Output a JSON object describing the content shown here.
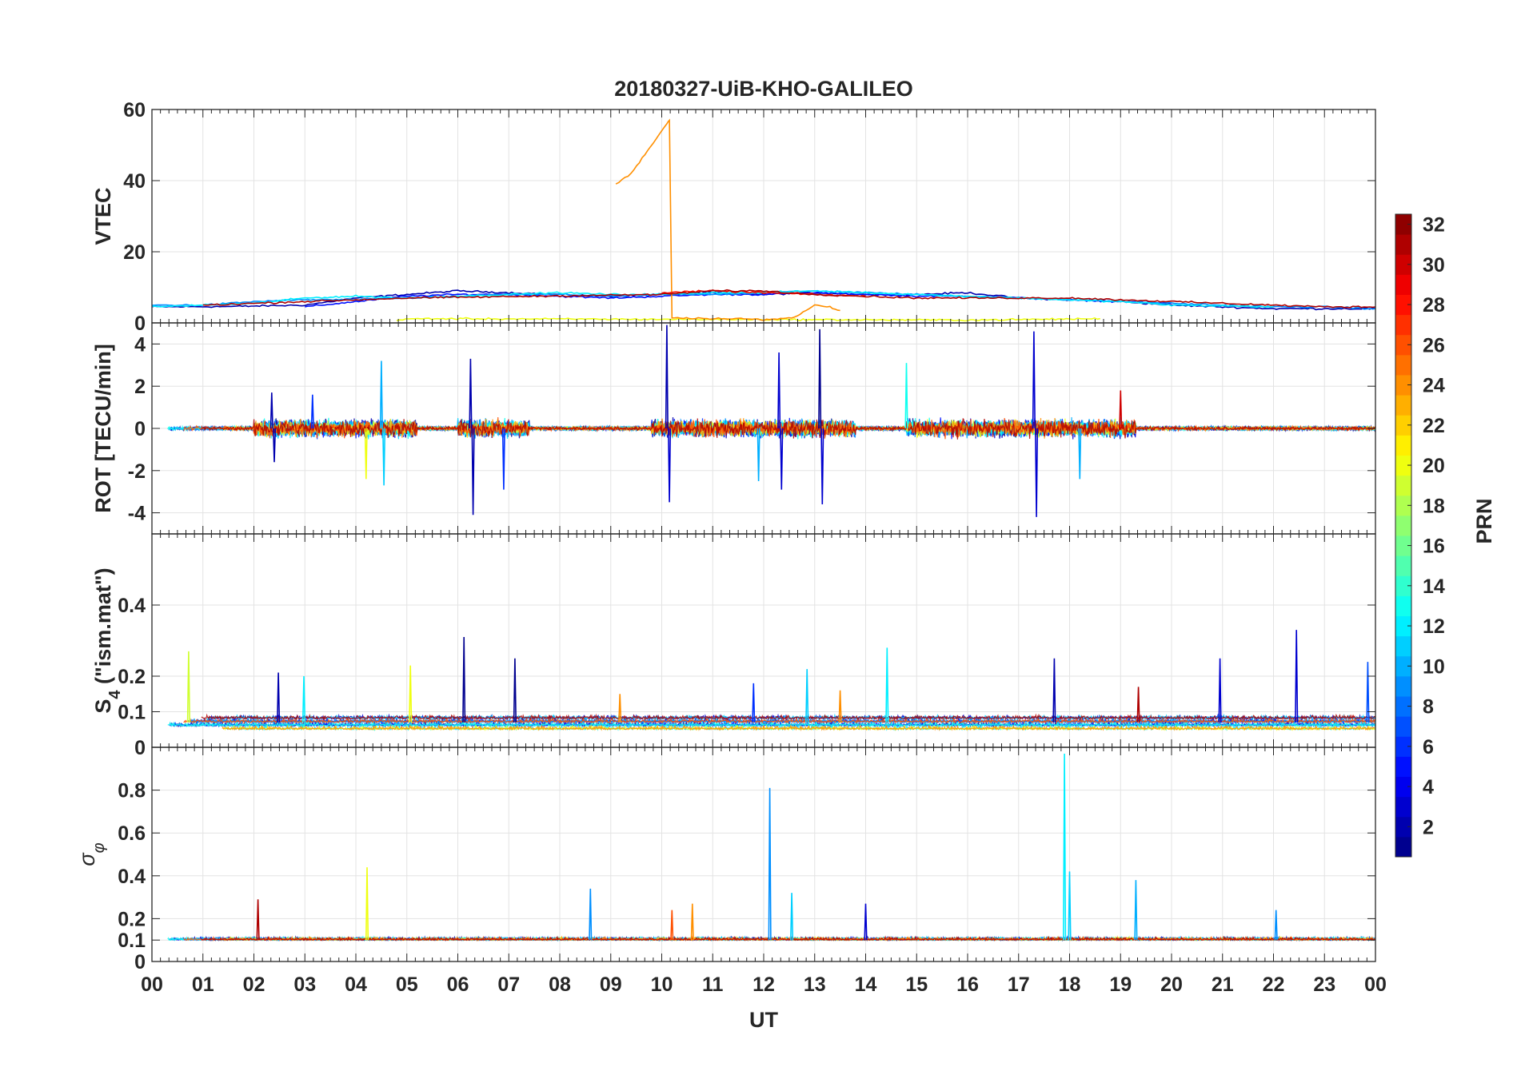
{
  "chart_data": {
    "type": "line",
    "title": "20180327-UiB-KHO-GALILEO",
    "xlabel": "UT",
    "x_ticks": [
      "00",
      "01",
      "02",
      "03",
      "04",
      "05",
      "06",
      "07",
      "08",
      "09",
      "10",
      "11",
      "12",
      "13",
      "14",
      "15",
      "16",
      "17",
      "18",
      "19",
      "20",
      "21",
      "22",
      "23",
      "00"
    ],
    "x_range_hours": [
      0,
      24
    ],
    "grid": true,
    "colorbar": {
      "label": "PRN",
      "range": [
        1,
        32
      ],
      "ticks": [
        "2",
        "4",
        "6",
        "8",
        "10",
        "12",
        "14",
        "16",
        "18",
        "20",
        "22",
        "24",
        "26",
        "28",
        "30",
        "32"
      ],
      "colormap": "jet",
      "placement": "right"
    },
    "panels": [
      {
        "name": "vtec",
        "ylabel": "VTEC",
        "ylim": [
          0,
          60
        ],
        "yticks": [
          "0",
          "20",
          "40",
          "60"
        ],
        "series": [
          {
            "prn": 2,
            "points": [
              [
                0,
                4.5
              ],
              [
                1.5,
                4.6
              ],
              [
                3,
                5
              ],
              [
                4,
                7
              ],
              [
                5,
                8
              ],
              [
                6,
                9
              ],
              [
                7,
                8.5
              ],
              [
                8,
                8
              ],
              [
                9,
                7.5
              ],
              [
                10,
                8
              ],
              [
                11,
                8.5
              ],
              [
                12,
                8
              ],
              [
                13,
                8.5
              ],
              [
                14,
                8
              ],
              [
                15,
                8
              ],
              [
                16,
                8.5
              ],
              [
                17,
                7
              ],
              [
                18,
                6.5
              ],
              [
                19,
                6
              ],
              [
                20,
                5
              ],
              [
                21,
                4.5
              ],
              [
                22,
                4
              ],
              [
                23,
                4
              ],
              [
                24,
                4
              ]
            ]
          },
          {
            "prn": 5,
            "points": [
              [
                3,
                4.5
              ],
              [
                4,
                6
              ],
              [
                5,
                7.5
              ],
              [
                6,
                8
              ],
              [
                7,
                8
              ],
              [
                8,
                7.5
              ],
              [
                9,
                7
              ],
              [
                10,
                7.5
              ],
              [
                11,
                8
              ],
              [
                12,
                8
              ],
              [
                13,
                8.5
              ],
              [
                14,
                8
              ],
              [
                15,
                7.5
              ],
              [
                16,
                7.5
              ],
              [
                17,
                7
              ],
              [
                18,
                6.5
              ],
              [
                19,
                6
              ],
              [
                20,
                5.5
              ]
            ]
          },
          {
            "prn": 9,
            "points": [
              [
                0,
                5
              ],
              [
                1,
                5
              ],
              [
                2,
                6
              ],
              [
                3,
                6.5
              ],
              [
                4,
                6.5
              ],
              [
                5,
                7
              ],
              [
                6,
                7.5
              ],
              [
                7,
                8
              ],
              [
                8,
                8
              ],
              [
                9,
                7.5
              ],
              [
                10,
                8
              ],
              [
                11,
                8
              ],
              [
                12,
                8.5
              ],
              [
                13,
                9
              ],
              [
                14,
                8.5
              ],
              [
                15,
                8
              ],
              [
                16,
                7.5
              ],
              [
                17,
                7
              ],
              [
                18,
                6.5
              ],
              [
                19,
                6
              ],
              [
                20,
                5.5
              ],
              [
                21,
                5
              ],
              [
                22,
                4.5
              ],
              [
                23,
                4.5
              ],
              [
                24,
                4
              ]
            ]
          },
          {
            "prn": 12,
            "points": [
              [
                0,
                4.5
              ],
              [
                1,
                5
              ],
              [
                2,
                5.5
              ],
              [
                3,
                7
              ],
              [
                4,
                7.5
              ],
              [
                5,
                7
              ],
              [
                6,
                7.5
              ],
              [
                7,
                8
              ],
              [
                8,
                8.5
              ],
              [
                9,
                8
              ],
              [
                10,
                8
              ],
              [
                11,
                8.5
              ],
              [
                12,
                8.5
              ],
              [
                13,
                9
              ],
              [
                14,
                8.5
              ],
              [
                15,
                8
              ],
              [
                16,
                7.5
              ],
              [
                17,
                7
              ],
              [
                18,
                6.5
              ],
              [
                19,
                6
              ],
              [
                20,
                5
              ],
              [
                21,
                4.8
              ],
              [
                22,
                4.5
              ]
            ]
          },
          {
            "prn": 20,
            "points": [
              [
                4.8,
                0.6
              ],
              [
                5.1,
                1.2
              ],
              [
                16,
                0.8
              ],
              [
                18.6,
                1.2
              ]
            ]
          },
          {
            "prn": 24,
            "points": [
              [
                9.1,
                39
              ],
              [
                9.4,
                42
              ],
              [
                10.1,
                56
              ],
              [
                10.15,
                57
              ],
              [
                10.2,
                1.5
              ],
              [
                11,
                1.2
              ],
              [
                11.5,
                1.3
              ],
              [
                12,
                0.8
              ],
              [
                12.6,
                1.5
              ],
              [
                13,
                5
              ],
              [
                13.3,
                4.5
              ],
              [
                13.5,
                3.5
              ]
            ]
          },
          {
            "prn": 28,
            "points": [
              [
                10,
                8.5
              ],
              [
                11,
                9
              ],
              [
                12,
                8.5
              ],
              [
                13,
                8
              ],
              [
                14,
                7.5
              ]
            ]
          },
          {
            "prn": 31,
            "points": [
              [
                1,
                5
              ],
              [
                2,
                5.5
              ],
              [
                3,
                6
              ],
              [
                4,
                6.5
              ],
              [
                5,
                7
              ],
              [
                10,
                8
              ],
              [
                11,
                9
              ],
              [
                12,
                9
              ],
              [
                13,
                8
              ],
              [
                15,
                7
              ],
              [
                16,
                7
              ],
              [
                17,
                7
              ],
              [
                18,
                7
              ],
              [
                19,
                6.5
              ],
              [
                23,
                4.5
              ],
              [
                24,
                4.5
              ]
            ]
          }
        ]
      },
      {
        "name": "rot",
        "ylabel": "ROT [TECU/min]",
        "ylim": [
          -5,
          5
        ],
        "yticks": [
          "-4",
          "-2",
          "0",
          "2",
          "4"
        ],
        "spikes": [
          {
            "prn": 2,
            "x": 2.35,
            "y": 1.7
          },
          {
            "prn": 2,
            "x": 2.4,
            "y": -1.6
          },
          {
            "prn": 6,
            "x": 3.15,
            "y": 1.6
          },
          {
            "prn": 10,
            "x": 4.5,
            "y": 3.2
          },
          {
            "prn": 11,
            "x": 4.55,
            "y": -2.7
          },
          {
            "prn": 20,
            "x": 4.2,
            "y": -2.4
          },
          {
            "prn": 2,
            "x": 6.25,
            "y": 3.3
          },
          {
            "prn": 2,
            "x": 6.3,
            "y": -4.1
          },
          {
            "prn": 6,
            "x": 6.9,
            "y": -2.9
          },
          {
            "prn": 2,
            "x": 10.1,
            "y": 4.9
          },
          {
            "prn": 3,
            "x": 10.15,
            "y": -3.5
          },
          {
            "prn": 10,
            "x": 11.9,
            "y": -2.5
          },
          {
            "prn": 3,
            "x": 12.3,
            "y": 3.6
          },
          {
            "prn": 3,
            "x": 12.35,
            "y": -2.9
          },
          {
            "prn": 1,
            "x": 13.1,
            "y": 4.7
          },
          {
            "prn": 3,
            "x": 13.15,
            "y": -3.6
          },
          {
            "prn": 13,
            "x": 14.8,
            "y": 3.1
          },
          {
            "prn": 3,
            "x": 17.3,
            "y": 4.6
          },
          {
            "prn": 3,
            "x": 17.35,
            "y": -4.2
          },
          {
            "prn": 10,
            "x": 18.2,
            "y": -2.4
          },
          {
            "prn": 30,
            "x": 19.0,
            "y": 1.8
          }
        ]
      },
      {
        "name": "s4",
        "ylabel": "S4 (\"ism.mat\")",
        "ylabel_main": "S",
        "ylabel_sub": "4",
        "ylabel_rest": " (\"ism.mat\")",
        "ylim": [
          0,
          0.6
        ],
        "yticks": [
          "0",
          "0.1",
          "0.2",
          "0.4"
        ],
        "spikes": [
          {
            "prn": 19,
            "x": 0.72,
            "y": 0.27
          },
          {
            "prn": 2,
            "x": 2.48,
            "y": 0.21
          },
          {
            "prn": 12,
            "x": 2.98,
            "y": 0.2
          },
          {
            "prn": 20,
            "x": 5.07,
            "y": 0.23
          },
          {
            "prn": 1,
            "x": 6.12,
            "y": 0.31
          },
          {
            "prn": 1,
            "x": 7.12,
            "y": 0.25
          },
          {
            "prn": 24,
            "x": 9.18,
            "y": 0.15
          },
          {
            "prn": 6,
            "x": 11.8,
            "y": 0.18
          },
          {
            "prn": 11,
            "x": 12.85,
            "y": 0.22
          },
          {
            "prn": 24,
            "x": 13.5,
            "y": 0.16
          },
          {
            "prn": 12,
            "x": 14.42,
            "y": 0.28
          },
          {
            "prn": 2,
            "x": 17.7,
            "y": 0.25
          },
          {
            "prn": 31,
            "x": 19.35,
            "y": 0.17
          },
          {
            "prn": 3,
            "x": 20.95,
            "y": 0.25
          },
          {
            "prn": 3,
            "x": 22.45,
            "y": 0.33
          },
          {
            "prn": 7,
            "x": 23.85,
            "y": 0.24
          }
        ]
      },
      {
        "name": "sigma_phi",
        "ylabel": "σ φ",
        "ylabel_main": "σ",
        "ylabel_sub": "φ",
        "ylim": [
          0,
          1
        ],
        "yticks": [
          "0",
          "0.1",
          "0.2",
          "0.4",
          "0.6",
          "0.8"
        ],
        "spikes": [
          {
            "prn": 31,
            "x": 2.08,
            "y": 0.29
          },
          {
            "prn": 20,
            "x": 4.22,
            "y": 0.44
          },
          {
            "prn": 9,
            "x": 8.6,
            "y": 0.34
          },
          {
            "prn": 9,
            "x": 12.12,
            "y": 0.81
          },
          {
            "prn": 11,
            "x": 12.55,
            "y": 0.32
          },
          {
            "prn": 3,
            "x": 14.0,
            "y": 0.27
          },
          {
            "prn": 12,
            "x": 17.9,
            "y": 0.97
          },
          {
            "prn": 11,
            "x": 18.0,
            "y": 0.42
          },
          {
            "prn": 10,
            "x": 19.3,
            "y": 0.38
          },
          {
            "prn": 9,
            "x": 22.05,
            "y": 0.24
          },
          {
            "prn": 24,
            "x": 10.6,
            "y": 0.27
          },
          {
            "prn": 26,
            "x": 10.2,
            "y": 0.24
          }
        ]
      }
    ]
  }
}
